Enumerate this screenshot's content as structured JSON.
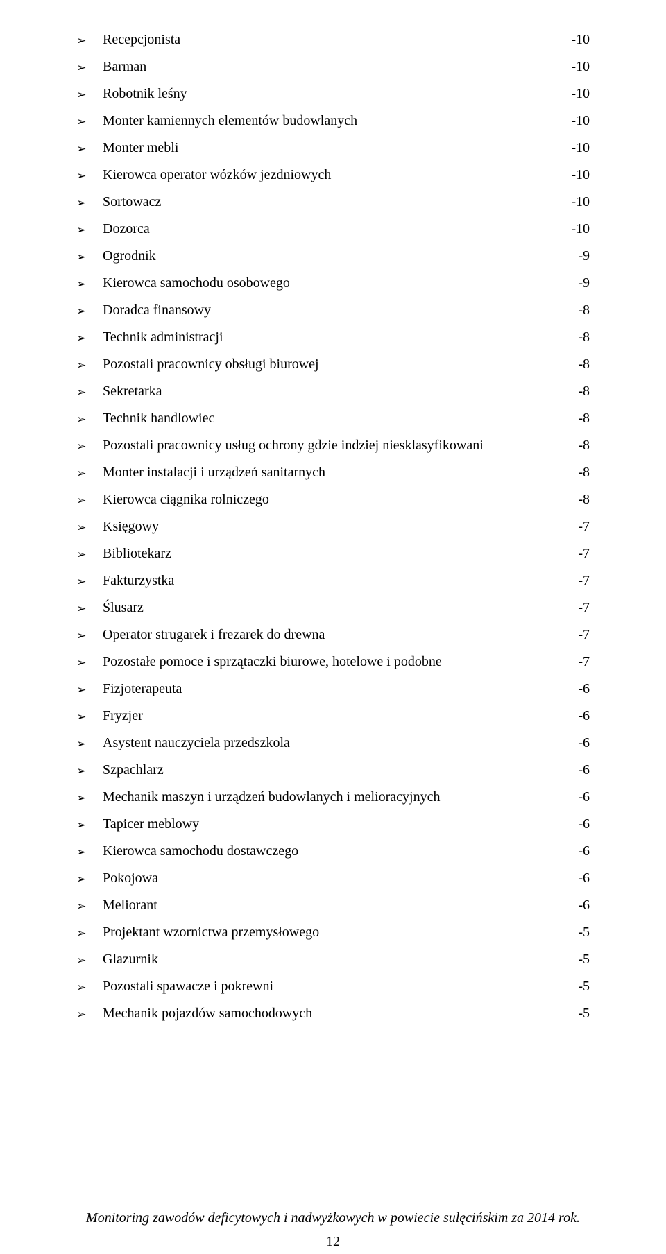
{
  "bullet_glyph": "➢",
  "colors": {
    "text": "#000000",
    "background": "#ffffff"
  },
  "typography": {
    "body_fontsize_pt": 15,
    "footer_italic": true
  },
  "footer": "Monitoring zawodów deficytowych i nadwyżkowych w powiecie sulęcińskim za 2014 rok.",
  "page_number": "12",
  "items": [
    {
      "label": "Recepcjonista",
      "value": "-10"
    },
    {
      "label": "Barman",
      "value": "-10"
    },
    {
      "label": "Robotnik leśny",
      "value": "-10"
    },
    {
      "label": "Monter kamiennych elementów budowlanych",
      "value": "-10"
    },
    {
      "label": "Monter mebli",
      "value": "-10"
    },
    {
      "label": "Kierowca operator wózków jezdniowych",
      "value": "-10"
    },
    {
      "label": "Sortowacz",
      "value": "-10"
    },
    {
      "label": "Dozorca",
      "value": "-10"
    },
    {
      "label": "Ogrodnik",
      "value": "-9"
    },
    {
      "label": "Kierowca samochodu osobowego",
      "value": "-9"
    },
    {
      "label": "Doradca finansowy",
      "value": "-8"
    },
    {
      "label": "Technik administracji",
      "value": "-8"
    },
    {
      "label": "Pozostali pracownicy obsługi biurowej",
      "value": "-8"
    },
    {
      "label": "Sekretarka",
      "value": "-8"
    },
    {
      "label": "Technik handlowiec",
      "value": "-8"
    },
    {
      "label": "Pozostali pracownicy usług ochrony gdzie indziej niesklasyfikowani",
      "value": "-8"
    },
    {
      "label": "Monter instalacji i urządzeń sanitarnych",
      "value": "-8"
    },
    {
      "label": "Kierowca ciągnika rolniczego",
      "value": "-8"
    },
    {
      "label": "Księgowy",
      "value": "-7"
    },
    {
      "label": "Bibliotekarz",
      "value": "-7"
    },
    {
      "label": "Fakturzystka",
      "value": "-7"
    },
    {
      "label": "Ślusarz",
      "value": "-7"
    },
    {
      "label": "Operator strugarek i frezarek do drewna",
      "value": "-7"
    },
    {
      "label": "Pozostałe pomoce i sprzątaczki biurowe, hotelowe i podobne",
      "value": "-7"
    },
    {
      "label": "Fizjoterapeuta",
      "value": "-6"
    },
    {
      "label": "Fryzjer",
      "value": "-6"
    },
    {
      "label": "Asystent nauczyciela przedszkola",
      "value": "-6"
    },
    {
      "label": "Szpachlarz",
      "value": "-6"
    },
    {
      "label": "Mechanik maszyn i urządzeń budowlanych i melioracyjnych",
      "value": "-6"
    },
    {
      "label": "Tapicer meblowy",
      "value": "-6"
    },
    {
      "label": "Kierowca samochodu dostawczego",
      "value": "-6"
    },
    {
      "label": "Pokojowa",
      "value": "-6"
    },
    {
      "label": "Meliorant",
      "value": "-6"
    },
    {
      "label": "Projektant wzornictwa przemysłowego",
      "value": "-5"
    },
    {
      "label": "Glazurnik",
      "value": "-5"
    },
    {
      "label": "Pozostali spawacze i pokrewni",
      "value": "-5"
    },
    {
      "label": "Mechanik pojazdów samochodowych",
      "value": "-5"
    }
  ]
}
